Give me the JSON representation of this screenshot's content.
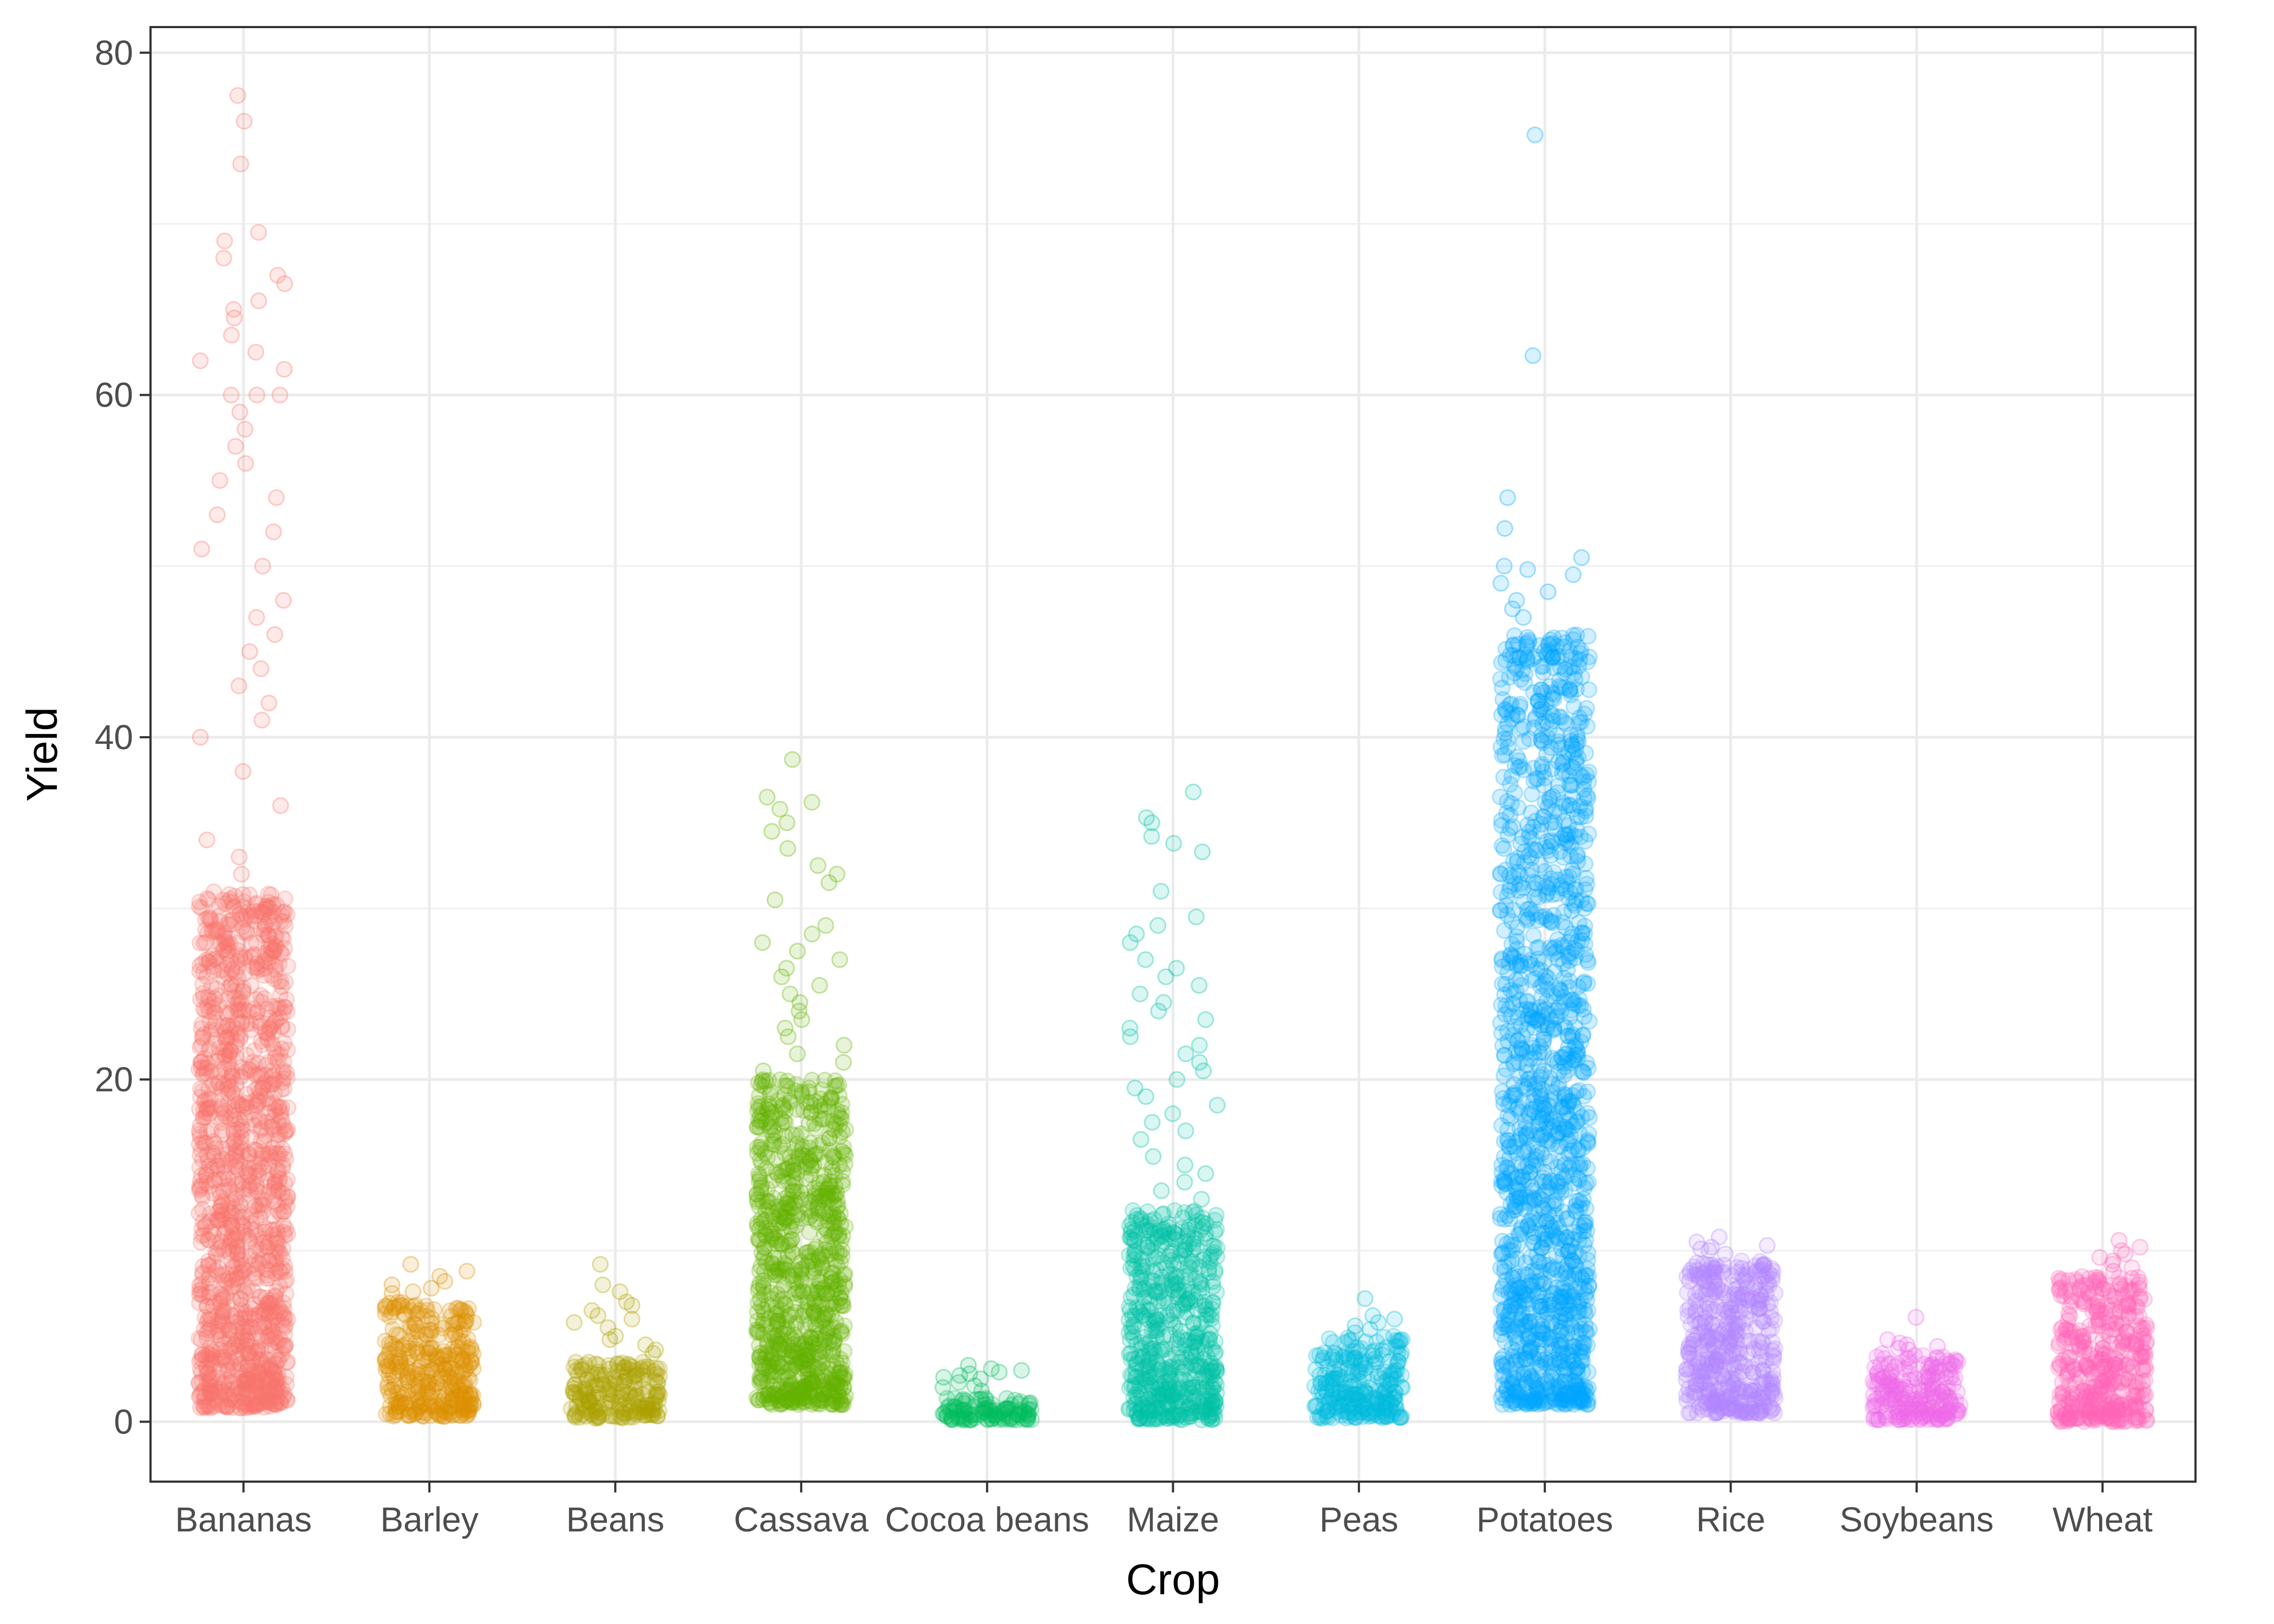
{
  "chart_data": {
    "type": "scatter",
    "style": "jittered strip plot, semi-transparent hollow circles, one colour per category",
    "title": "",
    "xlabel": "Crop",
    "ylabel": "Yield",
    "ylim": [
      -3.5,
      81.5
    ],
    "yticks": [
      0,
      20,
      40,
      60,
      80
    ],
    "grid": true,
    "legend": "none",
    "categories": [
      "Bananas",
      "Barley",
      "Beans",
      "Cassava",
      "Cocoa beans",
      "Maize",
      "Peas",
      "Potatoes",
      "Rice",
      "Soybeans",
      "Wheat"
    ],
    "series": [
      {
        "category": "Bananas",
        "color": "#F8766D",
        "min": 0.8,
        "core_max": 31,
        "max": 77.5,
        "outliers": [
          77.5,
          76,
          73.5,
          69.5,
          69,
          68,
          67,
          66.5,
          65.5,
          65,
          64.5,
          63.5,
          62.5,
          62,
          61.5,
          60,
          60,
          60,
          59,
          58,
          57,
          56,
          55,
          54,
          53,
          52,
          51,
          50,
          48,
          47,
          46,
          45,
          44,
          43,
          42,
          41,
          40,
          38,
          36,
          34,
          33,
          32
        ]
      },
      {
        "category": "Barley",
        "color": "#DB8E00",
        "min": 0.3,
        "core_max": 7,
        "max": 9.2,
        "outliers": [
          9.2,
          8.8,
          8.5,
          8.2,
          8,
          7.8,
          7.6,
          7.5
        ]
      },
      {
        "category": "Beans",
        "color": "#AEA200",
        "min": 0.2,
        "core_max": 3.5,
        "max": 9.2,
        "outliers": [
          9.2,
          8,
          7.6,
          7,
          6.8,
          6.5,
          6.2,
          6,
          5.8,
          5.5,
          5,
          4.8,
          4.5,
          4.2,
          4
        ]
      },
      {
        "category": "Cassava",
        "color": "#64B200",
        "min": 1.0,
        "core_max": 20,
        "max": 38.7,
        "outliers": [
          38.7,
          36.5,
          36.2,
          35.8,
          35,
          34.5,
          33.5,
          32.5,
          32,
          31.5,
          30.5,
          29,
          28.5,
          28,
          27.5,
          27,
          26.5,
          26,
          25.5,
          25,
          24.5,
          24,
          23.5,
          23,
          22.5,
          22,
          21.5,
          21,
          20.5
        ]
      },
      {
        "category": "Cocoa beans",
        "color": "#00BD5C",
        "min": 0.1,
        "core_max": 1.4,
        "max": 3.3,
        "outliers": [
          3.3,
          3.1,
          3,
          2.9,
          2.8,
          2.7,
          2.6,
          2.5,
          2.3,
          2.1,
          2,
          1.8
        ]
      },
      {
        "category": "Maize",
        "color": "#00C1A7",
        "min": 0.1,
        "core_max": 12.5,
        "max": 36.8,
        "outliers": [
          36.8,
          35.3,
          35,
          34.2,
          33.8,
          33.3,
          31,
          29.5,
          29,
          28.5,
          28,
          27,
          26.5,
          26,
          25.5,
          25,
          24.5,
          24,
          23.5,
          23,
          22.5,
          22,
          21.5,
          21,
          20.5,
          20,
          19.5,
          19,
          18.5,
          18,
          17.5,
          17,
          16.5,
          15.5,
          15,
          14.5,
          14,
          13.5,
          13
        ]
      },
      {
        "category": "Peas",
        "color": "#00BADE",
        "min": 0.2,
        "core_max": 5,
        "max": 7.2,
        "outliers": [
          7.2,
          6.2,
          6,
          5.8,
          5.6,
          5.4,
          5.2
        ]
      },
      {
        "category": "Potatoes",
        "color": "#00A6FF",
        "min": 1.0,
        "core_max": 46,
        "max": 75.2,
        "outliers": [
          75.2,
          62.3,
          54,
          52.2,
          50.5,
          50,
          49.8,
          49.5,
          49,
          48.5,
          48,
          47.5,
          47
        ]
      },
      {
        "category": "Rice",
        "color": "#B385FF",
        "min": 0.5,
        "core_max": 9.5,
        "max": 10.8,
        "outliers": [
          10.8,
          10.5,
          10.3,
          10.2,
          10.1,
          10,
          9.8
        ]
      },
      {
        "category": "Soybeans",
        "color": "#EF67EB",
        "min": 0.1,
        "core_max": 4,
        "max": 6.1,
        "outliers": [
          6.1,
          4.8,
          4.6,
          4.5,
          4.4,
          4.3,
          4.2
        ]
      },
      {
        "category": "Wheat",
        "color": "#FF63B6",
        "min": 0.0,
        "core_max": 8.5,
        "max": 10.6,
        "outliers": [
          10.6,
          10.2,
          10,
          9.8,
          9.6,
          9.4,
          9.2,
          9,
          8.8
        ]
      }
    ]
  }
}
